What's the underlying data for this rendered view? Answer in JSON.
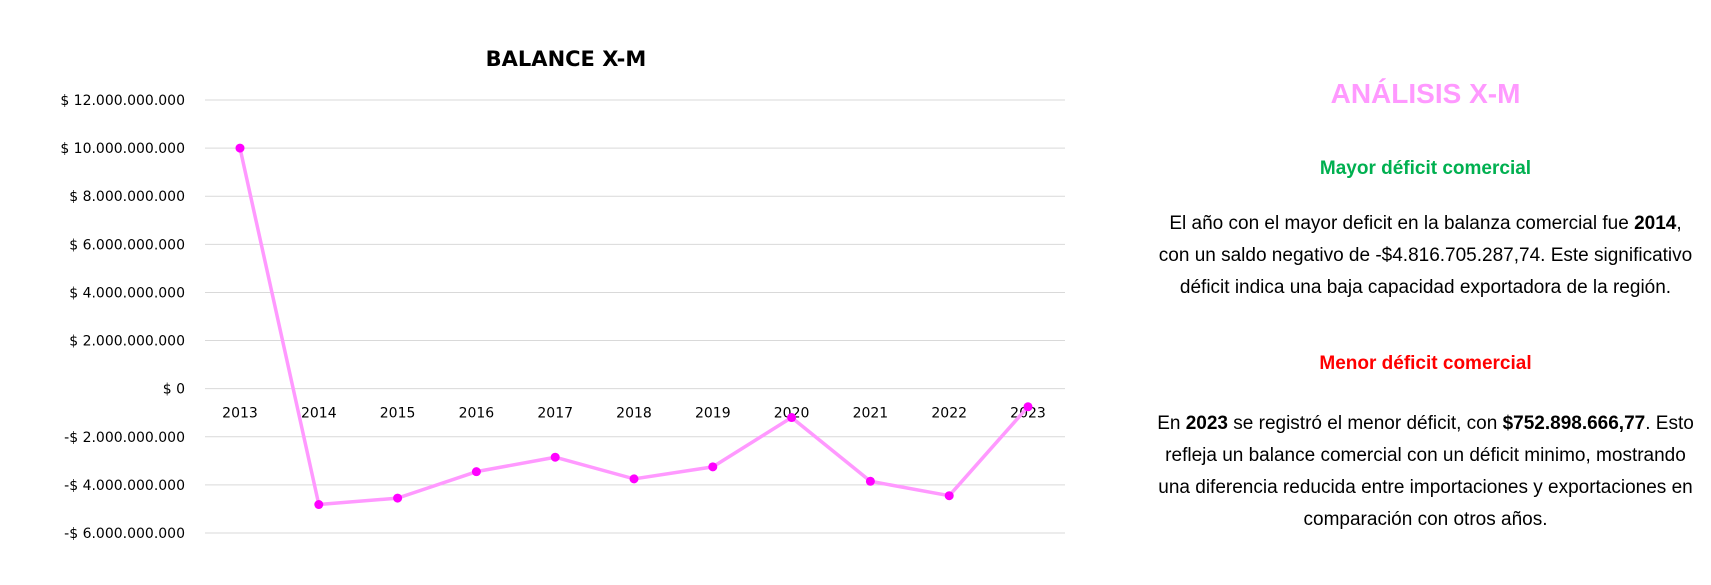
{
  "chart_data": {
    "type": "line",
    "title": "BALANCE X-M",
    "xlabel": "",
    "ylabel": "",
    "categories": [
      "2013",
      "2014",
      "2015",
      "2016",
      "2017",
      "2018",
      "2019",
      "2020",
      "2021",
      "2022",
      "2023"
    ],
    "series": [
      {
        "values": [
          10000000000,
          -4816705287.74,
          -4550000000,
          -3450000000,
          -2850000000,
          -3750000000,
          -3250000000,
          -1200000000,
          -3850000000,
          -4450000000,
          -752898666.77
        ]
      }
    ],
    "ylim": [
      -6000000000,
      12000000000
    ],
    "yticks": [
      12000000000,
      10000000000,
      8000000000,
      6000000000,
      4000000000,
      2000000000,
      0,
      -2000000000,
      -4000000000,
      -6000000000
    ],
    "ytick_labels": [
      "$ 12.000.000.000",
      "$ 10.000.000.000",
      "$ 8.000.000.000",
      "$ 6.000.000.000",
      "$ 4.000.000.000",
      "$ 2.000.000.000",
      "$ 0",
      "-$ 2.000.000.000",
      "-$ 4.000.000.000",
      "-$ 6.000.000.000"
    ],
    "grid": true,
    "legend": "none",
    "line_color": "#ff99ff",
    "marker_color": "#ff00ff"
  },
  "analysis": {
    "title": "ANÁLISIS X-M",
    "max_deficit": {
      "heading": "Mayor déficit comercial",
      "line1_a": "El año con el mayor deficit en la balanza comercial fue ",
      "line1_b": "2014",
      "line1_c": ",",
      "line2_a": "con un saldo negativo de -$4.816.705.287,74. ",
      "line2_b": "Este significativo",
      "line3": "déficit indica una baja capacidad exportadora de la región."
    },
    "min_deficit": {
      "heading": "Menor déficit comercial",
      "line1_a": "En ",
      "line1_b": "2023",
      "line1_c": " se registró el menor déficit, con ",
      "line1_d": "$752.898.666,77",
      "line1_e": ". Esto",
      "line2": "refleja un balance comercial con un déficit minimo, mostrando",
      "line3": "una diferencia reducida entre importaciones y exportaciones en",
      "line4": "comparación con otros años."
    }
  },
  "colors": {
    "title_pink": "#ff99ff",
    "heading_green": "#00b050",
    "heading_red": "#ff0000"
  }
}
